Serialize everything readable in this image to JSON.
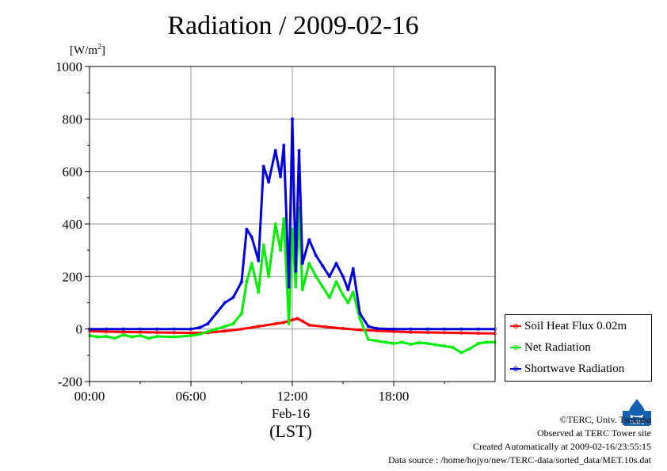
{
  "title": "Radiation / 2009-02-16",
  "unit": {
    "text": "[W/m",
    "sup": "2",
    "close": "]"
  },
  "date_label": "Feb-16",
  "lst_label": "(LST)",
  "footer": {
    "line1": "©TERC, Univ. Tsukuba",
    "line2": "Observed at TERC Tower site",
    "line3": "Created Automatically at 2009-02-16/23:55:15",
    "line4": "Data source : /home/hojyo/new/TERC-data/sorted_data/MET.10s.dat"
  },
  "logo_text": "TERC",
  "chart_data": {
    "type": "line",
    "title": "Radiation / 2009-02-16",
    "xlabel": "(LST)",
    "ylabel": "[W/m2]",
    "xlim": [
      0,
      24
    ],
    "ylim": [
      -200,
      1000
    ],
    "yticks": [
      -200,
      0,
      200,
      400,
      600,
      800,
      1000
    ],
    "xticks": [
      {
        "hour": 0,
        "label": "00:00"
      },
      {
        "hour": 6,
        "label": "06:00"
      },
      {
        "hour": 12,
        "label": "12:00"
      },
      {
        "hour": 18,
        "label": "18:00"
      }
    ],
    "grid": true,
    "legend_position": "right-bottom",
    "series": [
      {
        "name": "Soil Heat Flux 0.02m",
        "color": "#ff0000",
        "x": [
          0,
          1,
          2,
          3,
          4,
          5,
          6,
          7,
          8,
          9,
          10,
          11,
          11.5,
          12,
          12.3,
          12.6,
          13,
          14,
          15,
          16,
          17,
          18,
          19,
          20,
          21,
          22,
          23,
          24
        ],
        "y": [
          -8,
          -10,
          -11,
          -12,
          -13,
          -14,
          -15,
          -14,
          -8,
          0,
          10,
          20,
          25,
          35,
          40,
          30,
          15,
          8,
          2,
          -3,
          -6,
          -9,
          -12,
          -13,
          -14,
          -15,
          -16,
          -17
        ]
      },
      {
        "name": "Net Radiation",
        "color": "#00ee00",
        "x": [
          0,
          0.5,
          1,
          1.5,
          2,
          2.5,
          3,
          3.5,
          4,
          5,
          6,
          6.5,
          7,
          7.5,
          8,
          8.5,
          9,
          9.3,
          9.6,
          10,
          10.3,
          10.6,
          11,
          11.3,
          11.5,
          11.8,
          12,
          12.2,
          12.4,
          12.6,
          13,
          13.4,
          13.8,
          14.2,
          14.6,
          15,
          15.3,
          15.6,
          16,
          16.5,
          17,
          17.5,
          18,
          18.5,
          19,
          19.5,
          20,
          20.5,
          21,
          21.5,
          22,
          22.5,
          23,
          23.5,
          24
        ],
        "y": [
          -25,
          -30,
          -28,
          -35,
          -22,
          -30,
          -25,
          -35,
          -28,
          -30,
          -25,
          -20,
          -10,
          0,
          10,
          20,
          60,
          180,
          250,
          140,
          320,
          200,
          400,
          300,
          420,
          20,
          380,
          160,
          460,
          150,
          250,
          200,
          160,
          120,
          180,
          130,
          100,
          140,
          40,
          -40,
          -45,
          -50,
          -55,
          -50,
          -58,
          -52,
          -55,
          -60,
          -65,
          -70,
          -90,
          -75,
          -55,
          -50,
          -50
        ]
      },
      {
        "name": "Shortwave Radiation",
        "color": "#0000dd",
        "x": [
          0,
          1,
          2,
          3,
          4,
          5,
          6,
          6.5,
          7,
          7.5,
          8,
          8.5,
          9,
          9.3,
          9.6,
          10,
          10.3,
          10.6,
          11,
          11.3,
          11.5,
          11.8,
          12,
          12.2,
          12.4,
          12.6,
          13,
          13.4,
          13.8,
          14.2,
          14.6,
          15,
          15.3,
          15.6,
          16,
          16.5,
          17,
          18,
          19,
          20,
          21,
          22,
          23,
          24
        ],
        "y": [
          0,
          0,
          0,
          0,
          0,
          0,
          0,
          5,
          20,
          60,
          100,
          120,
          180,
          380,
          350,
          260,
          620,
          560,
          680,
          580,
          700,
          160,
          800,
          220,
          680,
          250,
          340,
          280,
          240,
          200,
          250,
          200,
          150,
          230,
          60,
          10,
          2,
          0,
          0,
          0,
          0,
          0,
          0,
          0
        ]
      }
    ]
  }
}
